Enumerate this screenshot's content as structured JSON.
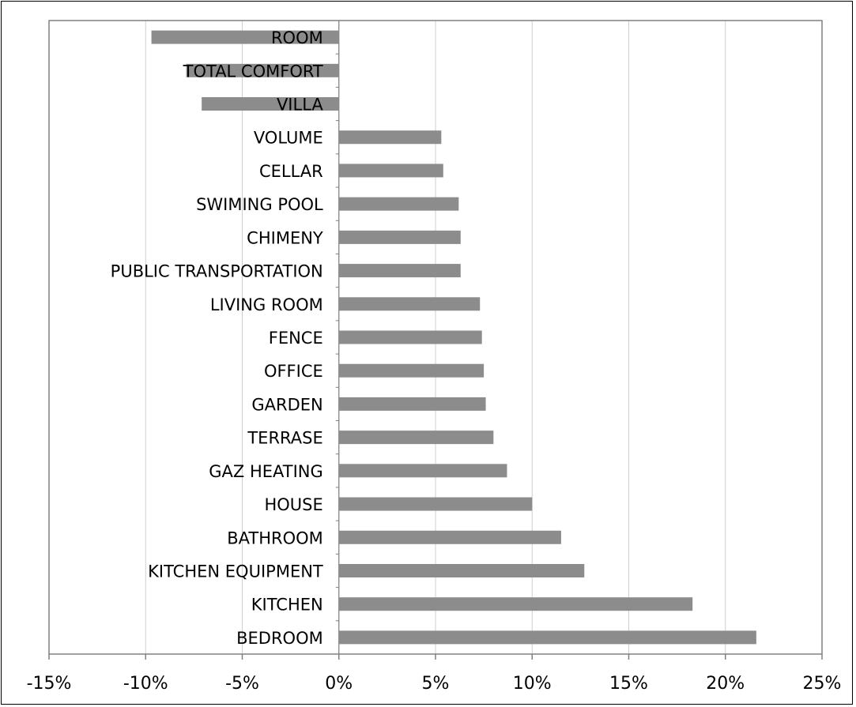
{
  "chart_data": {
    "type": "bar",
    "orientation": "horizontal",
    "title": "",
    "xlabel": "",
    "ylabel": "",
    "xlim": [
      -0.15,
      0.25
    ],
    "x_ticks": [
      -0.15,
      -0.1,
      -0.05,
      0.0,
      0.05,
      0.1,
      0.15,
      0.2,
      0.25
    ],
    "x_tick_labels": [
      "-15%",
      "-10%",
      "-5%",
      "0%",
      "5%",
      "10%",
      "15%",
      "20%",
      "25%"
    ],
    "grid": "vertical",
    "legend": "none",
    "bar_color": "#8c8c8c",
    "categories": [
      "ROOM",
      "TOTAL COMFORT",
      "VILLA",
      "VOLUME",
      "CELLAR",
      "SWIMING POOL",
      "CHIMENY",
      "PUBLIC TRANSPORTATION",
      "LIVING ROOM",
      "FENCE",
      "OFFICE",
      "GARDEN",
      "TERRASE",
      "GAZ HEATING",
      "HOUSE",
      "BATHROOM",
      "KITCHEN EQUIPMENT",
      "KITCHEN",
      "BEDROOM"
    ],
    "values": [
      -0.097,
      -0.079,
      -0.071,
      0.053,
      0.054,
      0.062,
      0.063,
      0.063,
      0.073,
      0.074,
      0.075,
      0.076,
      0.08,
      0.087,
      0.1,
      0.115,
      0.127,
      0.183,
      0.216
    ]
  }
}
